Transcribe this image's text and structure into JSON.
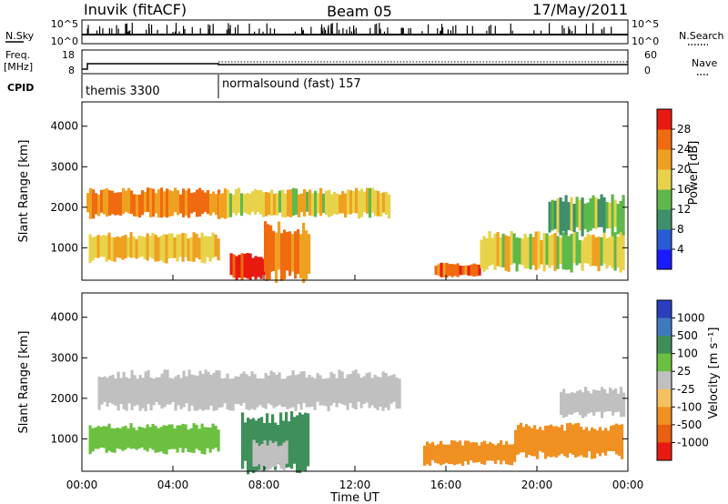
{
  "header": {
    "station": "Inuvik (fitACF)",
    "beam": "Beam 05",
    "date": "17/May/2011"
  },
  "top_panel": {
    "left_label": "N.Sky",
    "right_label": "N.Search",
    "left_ticks": [
      "10^5",
      "10^0"
    ],
    "right_ticks": [
      "10^5",
      "10^0"
    ],
    "freq_label_1": "Freq.",
    "freq_label_2": "[MHz]",
    "freq_ticks": [
      "18",
      "8"
    ],
    "nave_label": "Nave",
    "nave_ticks": [
      "60",
      "0"
    ],
    "cpid_label": "CPID",
    "cpid_segments": [
      {
        "label": "themis 3300",
        "start_hour": 0,
        "end_hour": 6
      },
      {
        "label": "normalsound (fast) 157",
        "start_hour": 6,
        "end_hour": 24
      }
    ]
  },
  "chart_data": [
    {
      "type": "heatmap",
      "panel": "power",
      "xlabel": "",
      "ylabel": "Slant Range [km]",
      "xlim": [
        0,
        24
      ],
      "ylim": [
        200,
        4600
      ],
      "y_ticks": [
        1000,
        2000,
        3000,
        4000
      ],
      "colorbar": {
        "label": "Power [dB]",
        "ticks": [
          "4",
          "8",
          "12",
          "16",
          "20",
          "24",
          "28"
        ],
        "colors": [
          "#1a1aff",
          "#2a5bd6",
          "#3f8f6a",
          "#5fb84a",
          "#e8d24a",
          "#f0a020",
          "#f06a10",
          "#e81a10"
        ]
      },
      "bands": [
        {
          "y0": 1800,
          "y1": 2400,
          "x0": 0.2,
          "x1": 6.0,
          "value": 24
        },
        {
          "y0": 700,
          "y1": 1300,
          "x0": 0.3,
          "x1": 6.0,
          "value": 20
        },
        {
          "y0": 250,
          "y1": 800,
          "x0": 6.5,
          "x1": 8.3,
          "value": 28
        },
        {
          "y0": 300,
          "y1": 1500,
          "x0": 8.0,
          "x1": 10.0,
          "value": 24
        },
        {
          "y0": 1800,
          "y1": 2400,
          "x0": 6.0,
          "x1": 13.5,
          "value": 18
        },
        {
          "y0": 300,
          "y1": 600,
          "x0": 15.5,
          "x1": 17.5,
          "value": 26
        },
        {
          "y0": 500,
          "y1": 1300,
          "x0": 17.5,
          "x1": 23.8,
          "value": 18
        },
        {
          "y0": 1400,
          "y1": 2200,
          "x0": 20.5,
          "x1": 23.8,
          "value": 14
        }
      ]
    },
    {
      "type": "heatmap",
      "panel": "velocity",
      "xlabel": "Time UT",
      "ylabel": "Slant Range [km]",
      "xlim": [
        0,
        24
      ],
      "ylim": [
        200,
        4600
      ],
      "x_ticks": [
        "00:00",
        "04:00",
        "08:00",
        "12:00",
        "16:00",
        "20:00",
        "00:00"
      ],
      "y_ticks": [
        1000,
        2000,
        3000,
        4000
      ],
      "colorbar": {
        "label": "Velocity [m s⁻¹]",
        "ticks": [
          "1000",
          "500",
          "100",
          "25",
          "-25",
          "-100",
          "-500",
          "-1000"
        ],
        "colors": [
          "#2a3fbf",
          "#3f7abf",
          "#3f8f5a",
          "#6cc040",
          "#c0c0c0",
          "#f5c060",
          "#f09020",
          "#e86010",
          "#e81a10"
        ]
      },
      "bands": [
        {
          "y0": 1800,
          "y1": 2600,
          "x0": 0.7,
          "x1": 14.0,
          "value": 0
        },
        {
          "y0": 700,
          "y1": 1300,
          "x0": 0.3,
          "x1": 6.0,
          "value": 60
        },
        {
          "y0": 300,
          "y1": 1500,
          "x0": 7.0,
          "x1": 10.0,
          "value": 300
        },
        {
          "y0": 300,
          "y1": 900,
          "x0": 7.5,
          "x1": 9.0,
          "value": 0
        },
        {
          "y0": 400,
          "y1": 900,
          "x0": 15.0,
          "x1": 19.0,
          "value": -200
        },
        {
          "y0": 600,
          "y1": 1300,
          "x0": 19.0,
          "x1": 23.8,
          "value": -400
        },
        {
          "y0": 1600,
          "y1": 2200,
          "x0": 21.0,
          "x1": 23.8,
          "value": 0
        }
      ]
    }
  ]
}
